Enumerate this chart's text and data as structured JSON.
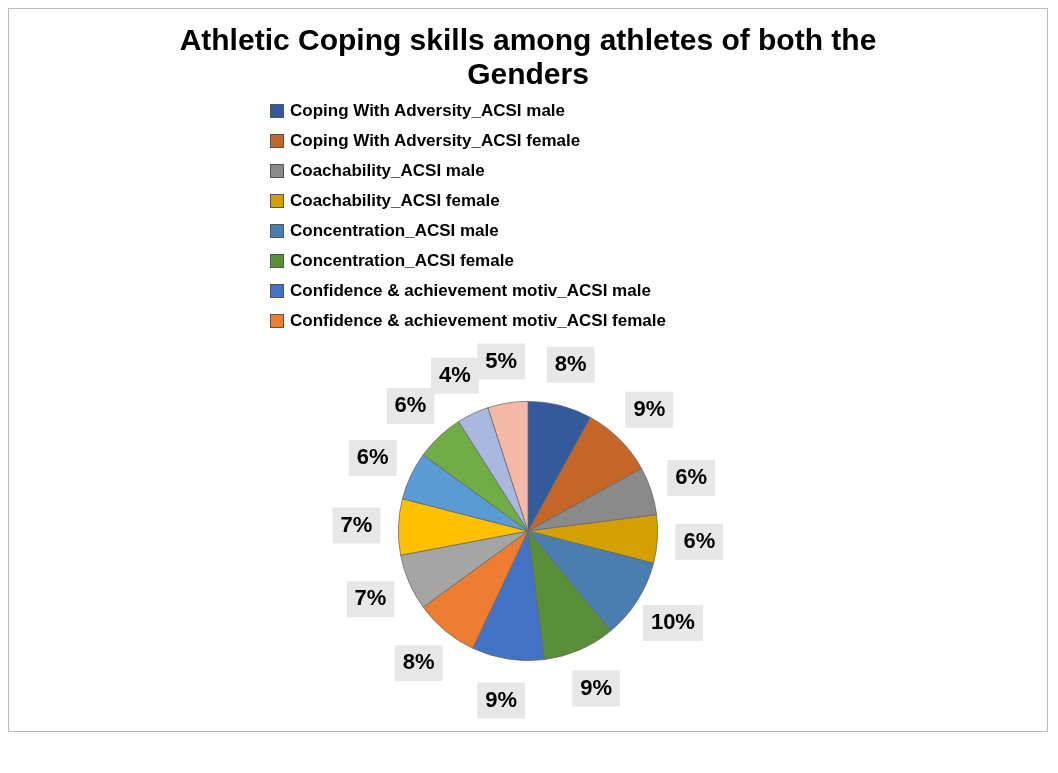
{
  "chart_data": {
    "type": "pie",
    "title": "Athletic Coping skills among athletes of both the Genders",
    "categories": [
      "Coping With Adversity_ACSI male",
      "Coping With Adversity_ACSI female",
      "Coachability_ACSI male",
      "Coachability_ACSI female",
      "Concentration_ACSI male",
      "Concentration_ACSI female",
      "Confidence & achievement motiv_ACSI male",
      "Confidence & achievement motiv_ACSI female",
      null,
      null,
      null,
      null,
      null,
      null
    ],
    "values": [
      8,
      9,
      6,
      6,
      10,
      9,
      9,
      8,
      7,
      7,
      6,
      6,
      4,
      5
    ],
    "value_labels": [
      "8%",
      "9%",
      "6%",
      "6%",
      "10%",
      "9%",
      "9%",
      "8%",
      "7%",
      "7%",
      "6%",
      "6%",
      "4%",
      "5%"
    ],
    "colors": [
      "#325a9c",
      "#c4652a",
      "#8a8a8a",
      "#d4a000",
      "#4a7eb0",
      "#5a8f3a",
      "#4472c4",
      "#ed7d31",
      "#a5a5a5",
      "#ffc000",
      "#5b9bd5",
      "#70ad47",
      "#a9b8df",
      "#f4b8a8"
    ],
    "legend": "top"
  }
}
